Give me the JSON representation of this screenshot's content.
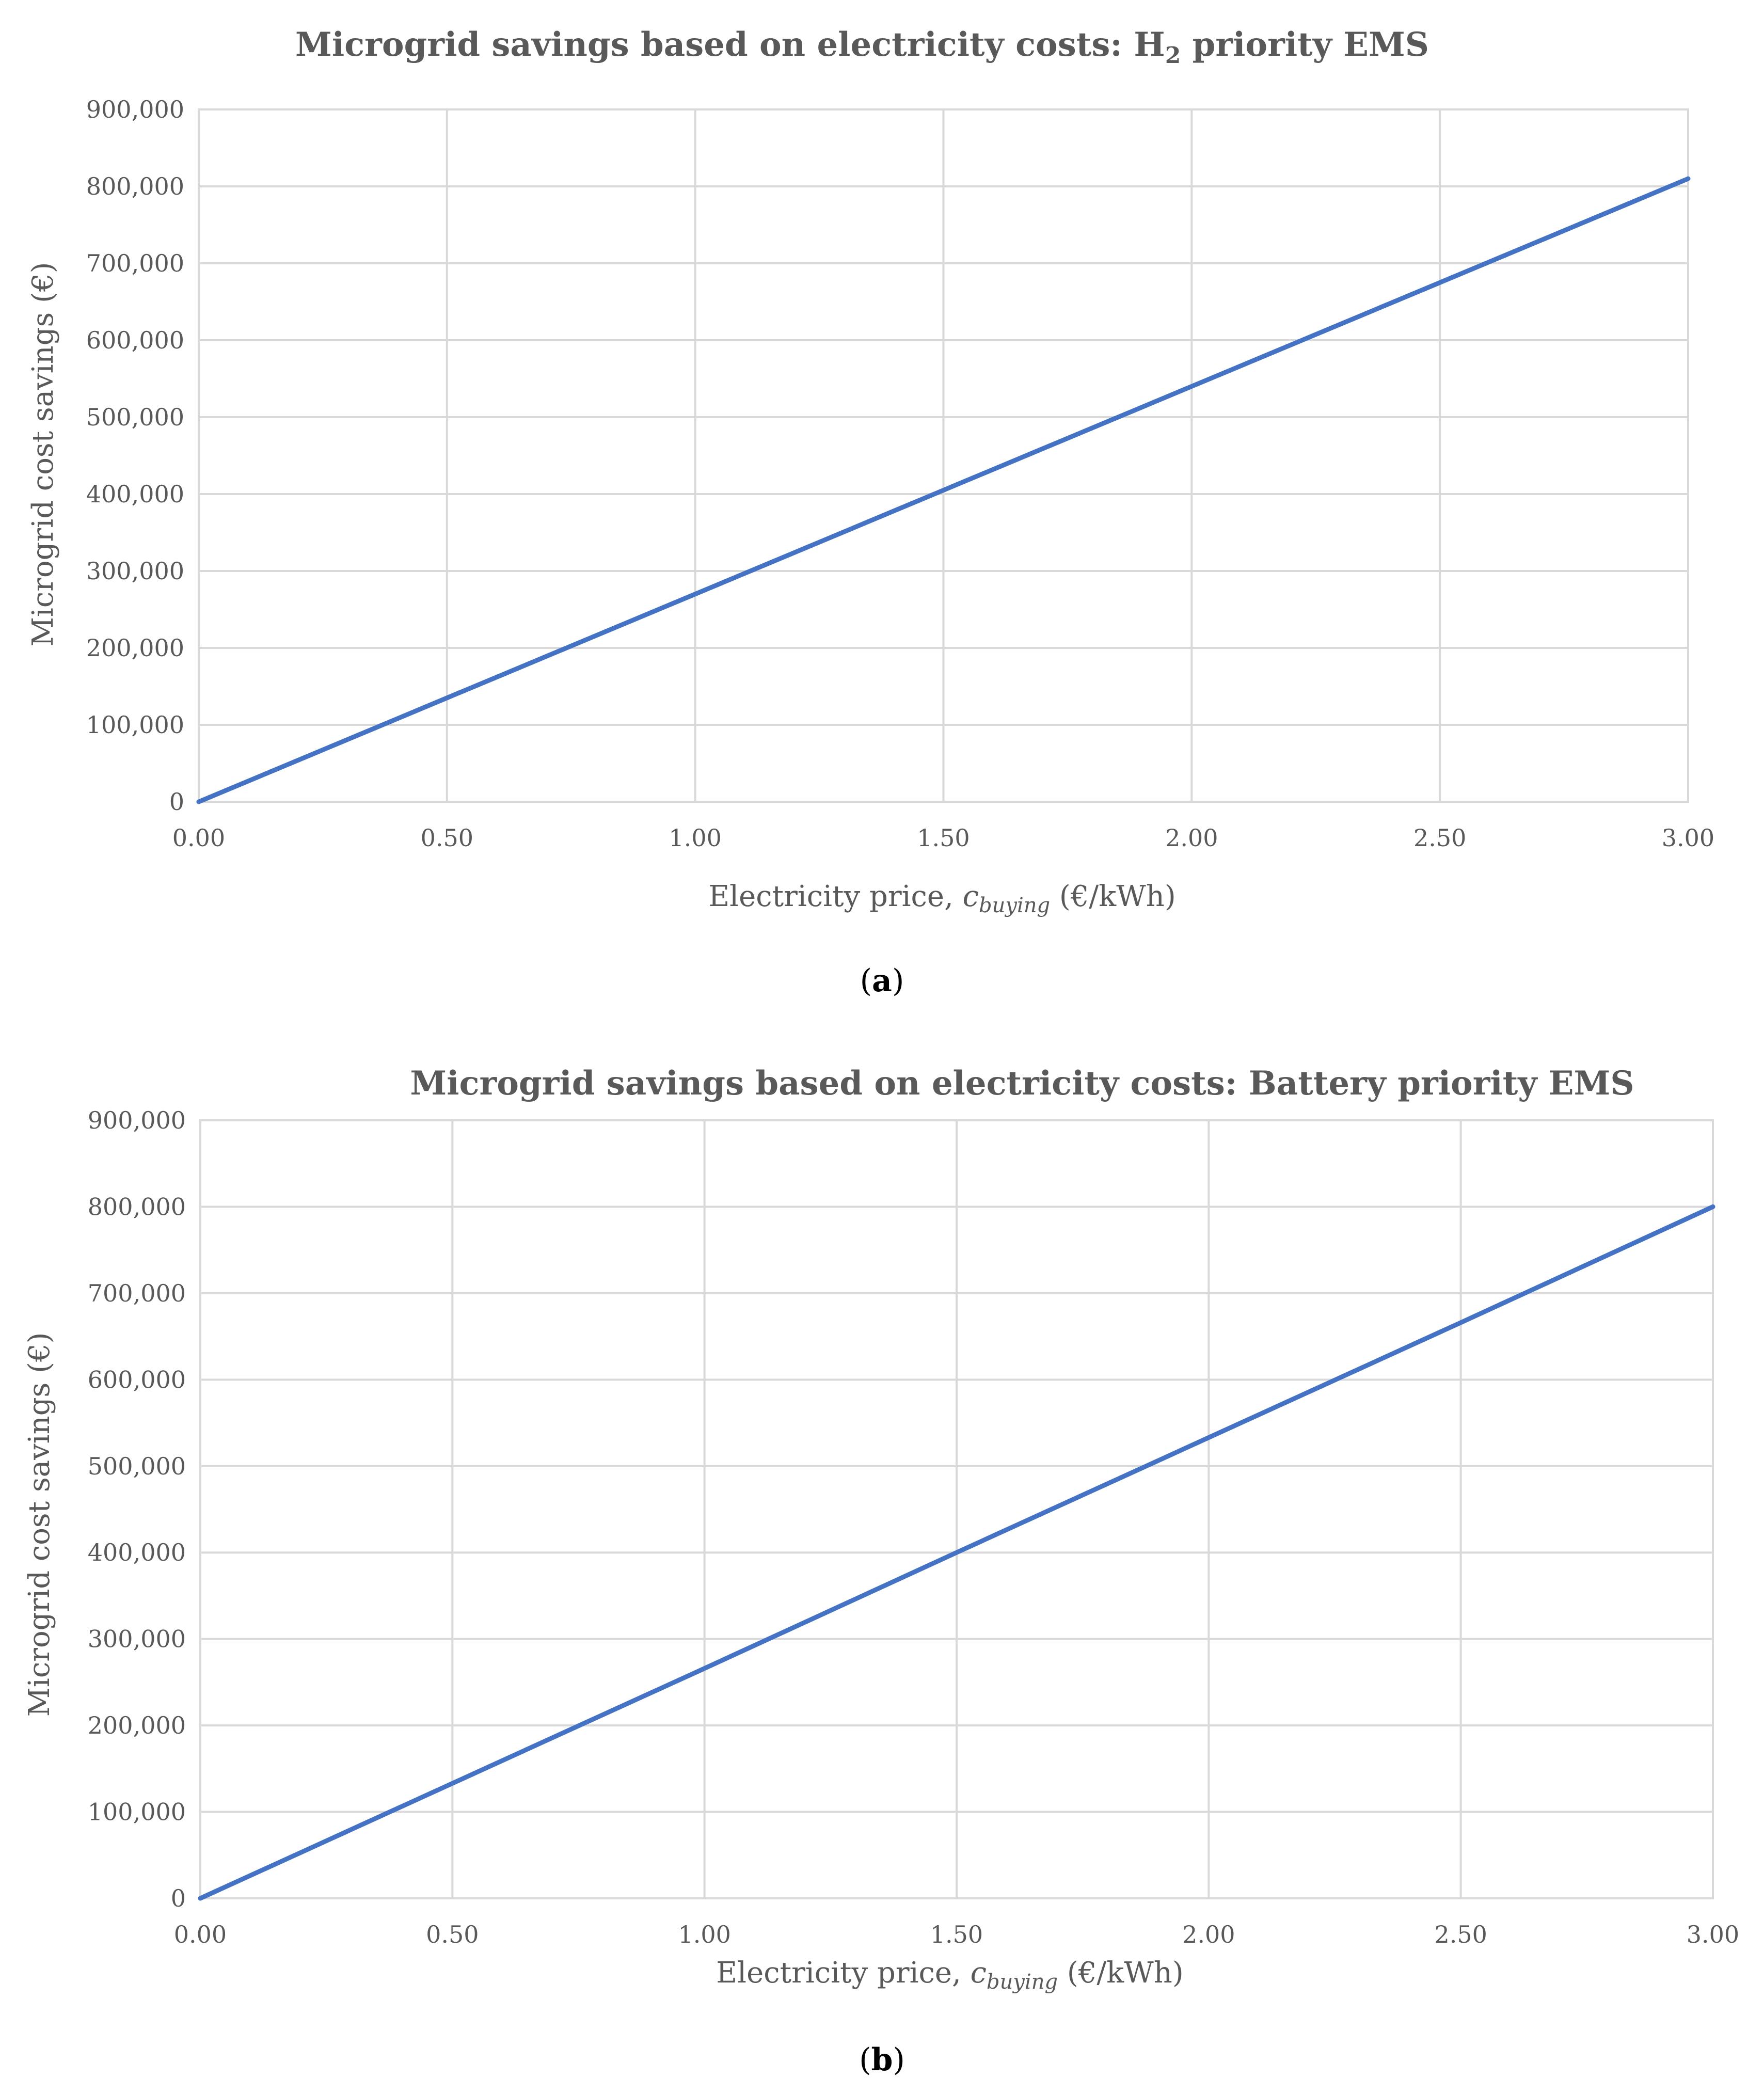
{
  "chart_data": [
    {
      "type": "line",
      "title_main": "Microgrid  savings based on electricity  costs: H",
      "title_sub": "2",
      "title_tail": " priority  EMS",
      "xlabel_prefix": "Electricity price, ",
      "xlabel_var": "c",
      "xlabel_var_sub": "buying",
      "xlabel_suffix": " (€/kWh)",
      "ylabel": "Microgrid cost savings (€)",
      "xlim": [
        0,
        3
      ],
      "ylim": [
        0,
        900000
      ],
      "x_ticks": [
        0,
        0.5,
        1,
        1.5,
        2,
        2.5,
        3
      ],
      "x_tick_labels": [
        "0.00",
        "0.50",
        "1.00",
        "1.50",
        "2.00",
        "2.50",
        "3.00"
      ],
      "y_ticks": [
        0,
        100000,
        200000,
        300000,
        400000,
        500000,
        600000,
        700000,
        800000,
        900000
      ],
      "y_tick_labels": [
        "0",
        "100,000",
        "200,000",
        "300,000",
        "400,000",
        "500,000",
        "600,000",
        "700,000",
        "800,000",
        "900,000"
      ],
      "grid": true,
      "series": [
        {
          "x": [
            0,
            0.5,
            1,
            1.5,
            2,
            2.5,
            3
          ],
          "y": [
            0,
            135000,
            270000,
            405000,
            540000,
            675000,
            810000
          ]
        }
      ],
      "caption": "a"
    },
    {
      "type": "line",
      "title_main": "Microgrid  savings based on electricity  costs: Battery priority  EMS",
      "xlabel_prefix": "Electricity price, ",
      "xlabel_var": "c",
      "xlabel_var_sub": "buying",
      "xlabel_suffix": " (€/kWh)",
      "ylabel": "Microgrid cost savings (€)",
      "xlim": [
        0,
        3
      ],
      "ylim": [
        0,
        900000
      ],
      "x_ticks": [
        0,
        0.5,
        1,
        1.5,
        2,
        2.5,
        3
      ],
      "x_tick_labels": [
        "0.00",
        "0.50",
        "1.00",
        "1.50",
        "2.00",
        "2.50",
        "3.00"
      ],
      "y_ticks": [
        0,
        100000,
        200000,
        300000,
        400000,
        500000,
        600000,
        700000,
        800000,
        900000
      ],
      "y_tick_labels": [
        "0",
        "100,000",
        "200,000",
        "300,000",
        "400,000",
        "500,000",
        "600,000",
        "700,000",
        "800,000",
        "900,000"
      ],
      "grid": true,
      "series": [
        {
          "x": [
            0,
            0.5,
            1,
            1.5,
            2,
            2.5,
            3
          ],
          "y": [
            0,
            133000,
            266000,
            400000,
            533000,
            666000,
            800000
          ]
        }
      ],
      "caption": "b"
    }
  ],
  "series_color": "#4472c4",
  "grid_color": "#d9d9d9",
  "text_color": "#595959"
}
